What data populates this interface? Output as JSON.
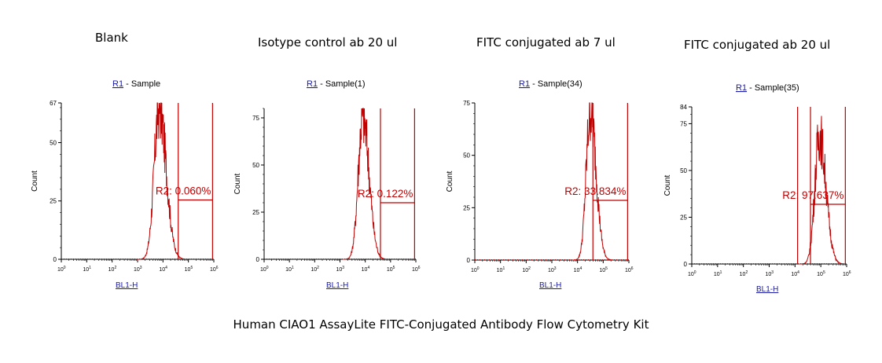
{
  "colors": {
    "trace": "#c00000",
    "axis": "#000000",
    "link": "#1a1aa8"
  },
  "caption": "Human CIAO1 AssayLite FITC-Conjugated Antibody Flow Cytometry Kit",
  "chart_data": [
    {
      "type": "histogram",
      "header": "Blank",
      "region": "R1",
      "title_suffix": " - Sample",
      "xlabel": "BL1-H",
      "ylabel": "Count",
      "x_scale": "log",
      "xlim": [
        1,
        1000000
      ],
      "x_ticks": [
        "10",
        "10",
        "10",
        "10",
        "10",
        "10",
        "10"
      ],
      "x_tick_exponents": [
        "0",
        "1",
        "2",
        "3",
        "4",
        "5",
        "6"
      ],
      "ylim": [
        0,
        67
      ],
      "y_ticks": [
        0,
        25,
        50,
        67
      ],
      "peak": {
        "center_decade": 3.85,
        "width": 0.22,
        "height": 65
      },
      "gate_label": "R2",
      "gate_value": "0.060%",
      "gate_text": "R2: 0.060%",
      "gate_range": [
        4.6,
        5.95
      ]
    },
    {
      "type": "histogram",
      "header": "Isotype control ab 20 ul",
      "region": "R1",
      "title_suffix": " - Sample(1)",
      "xlabel": "BL1-H",
      "ylabel": "Count",
      "x_scale": "log",
      "xlim": [
        1,
        1000000
      ],
      "x_ticks": [
        "10",
        "10",
        "10",
        "10",
        "10",
        "10",
        "10"
      ],
      "x_tick_exponents": [
        "0",
        "1",
        "2",
        "3",
        "4",
        "5",
        "6"
      ],
      "ylim": [
        0,
        80
      ],
      "y_ticks": [
        0,
        25,
        50,
        75
      ],
      "peak": {
        "center_decade": 3.9,
        "width": 0.2,
        "height": 76
      },
      "gate_label": "R2",
      "gate_value": "0.122%",
      "gate_text": "R2: 0.122%",
      "gate_range": [
        4.6,
        5.95
      ]
    },
    {
      "type": "histogram",
      "header": "FITC conjugated ab 7 ul",
      "region": "R1",
      "title_suffix": " - Sample(34)",
      "xlabel": "BL1-H",
      "ylabel": "Count",
      "x_scale": "log",
      "xlim": [
        1,
        1000000
      ],
      "x_ticks": [
        "10",
        "10",
        "10",
        "10",
        "10",
        "10",
        "10"
      ],
      "x_tick_exponents": [
        "0",
        "1",
        "2",
        "3",
        "4",
        "5",
        "6"
      ],
      "ylim": [
        0,
        75
      ],
      "y_ticks": [
        0,
        25,
        50,
        75
      ],
      "peak": {
        "center_decade": 4.5,
        "width": 0.18,
        "height": 71
      },
      "gate_label": "R2",
      "gate_value": "33.834%",
      "gate_text": "R2: 33.834%",
      "gate_range": [
        4.6,
        5.95
      ]
    },
    {
      "type": "histogram",
      "header": "FITC conjugated ab 20 ul",
      "region": "R1",
      "title_suffix": " - Sample(35)",
      "xlabel": "BL1-H",
      "ylabel": "Count",
      "x_scale": "log",
      "xlim": [
        1,
        1000000
      ],
      "x_ticks": [
        "10",
        "10",
        "10",
        "10",
        "10",
        "10",
        "10"
      ],
      "x_tick_exponents": [
        "0",
        "1",
        "2",
        "3",
        "4",
        "5",
        "6"
      ],
      "ylim": [
        0,
        84
      ],
      "y_ticks": [
        0,
        25,
        50,
        75,
        84
      ],
      "peak": {
        "center_decade": 4.95,
        "width": 0.2,
        "height": 69
      },
      "gate_label": "R2",
      "gate_value": "97.637%",
      "gate_text": "R2: 97.637%",
      "gate_range": [
        4.6,
        5.95
      ]
    }
  ]
}
